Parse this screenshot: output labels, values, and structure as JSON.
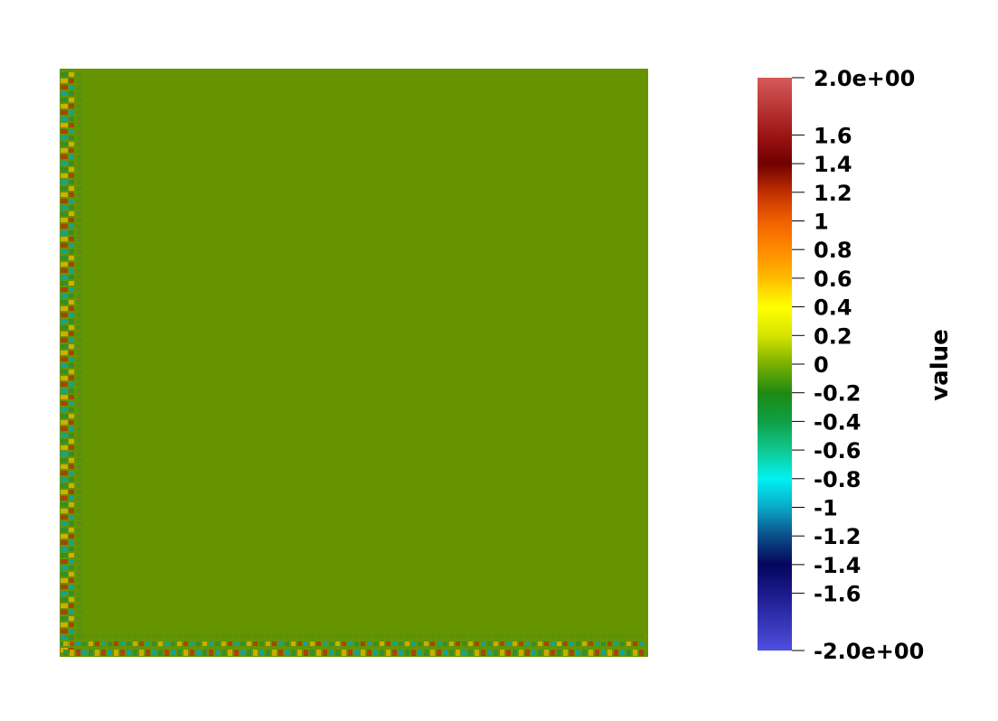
{
  "colorbar": {
    "title": "value",
    "range": [
      -2.0,
      2.0
    ],
    "labels": [
      {
        "value": 2.0,
        "text": "2.0e+00"
      },
      {
        "value": 1.6,
        "text": "1.6"
      },
      {
        "value": 1.4,
        "text": "1.4"
      },
      {
        "value": 1.2,
        "text": "1.2"
      },
      {
        "value": 1.0,
        "text": "1"
      },
      {
        "value": 0.8,
        "text": "0.8"
      },
      {
        "value": 0.6,
        "text": "0.6"
      },
      {
        "value": 0.4,
        "text": "0.4"
      },
      {
        "value": 0.2,
        "text": "0.2"
      },
      {
        "value": 0.0,
        "text": "0"
      },
      {
        "value": -0.2,
        "text": "-0.2"
      },
      {
        "value": -0.4,
        "text": "-0.4"
      },
      {
        "value": -0.6,
        "text": "-0.6"
      },
      {
        "value": -0.8,
        "text": "-0.8"
      },
      {
        "value": -1.0,
        "text": "-1"
      },
      {
        "value": -1.2,
        "text": "-1.2"
      },
      {
        "value": -1.4,
        "text": "-1.4"
      },
      {
        "value": -1.6,
        "text": "-1.6"
      },
      {
        "value": -2.0,
        "text": "-2.0e+00"
      }
    ],
    "color_stops": [
      {
        "value": -2.0,
        "color": "#4f4fe0"
      },
      {
        "value": -1.6,
        "color": "#1a1a8a"
      },
      {
        "value": -1.4,
        "color": "#05055e"
      },
      {
        "value": -1.2,
        "color": "#0a4e88"
      },
      {
        "value": -1.0,
        "color": "#0aa8c8"
      },
      {
        "value": -0.8,
        "color": "#00f2f2"
      },
      {
        "value": -0.6,
        "color": "#10c890"
      },
      {
        "value": -0.4,
        "color": "#0f9f45"
      },
      {
        "value": -0.2,
        "color": "#1d8a12"
      },
      {
        "value": 0.0,
        "color": "#79b000"
      },
      {
        "value": 0.2,
        "color": "#d6e400"
      },
      {
        "value": 0.4,
        "color": "#ffff00"
      },
      {
        "value": 0.6,
        "color": "#ffbb00"
      },
      {
        "value": 0.8,
        "color": "#ff8a00"
      },
      {
        "value": 1.0,
        "color": "#f06000"
      },
      {
        "value": 1.2,
        "color": "#c03000"
      },
      {
        "value": 1.4,
        "color": "#700000"
      },
      {
        "value": 1.6,
        "color": "#9e1515"
      },
      {
        "value": 2.0,
        "color": "#d65a5a"
      }
    ]
  },
  "field": {
    "background_color": "#669400",
    "edge_colors": [
      "#2b8f33",
      "#d9b300",
      "#b33a00",
      "#0ba3a3",
      "#8db000",
      "#4f8d1a"
    ]
  }
}
